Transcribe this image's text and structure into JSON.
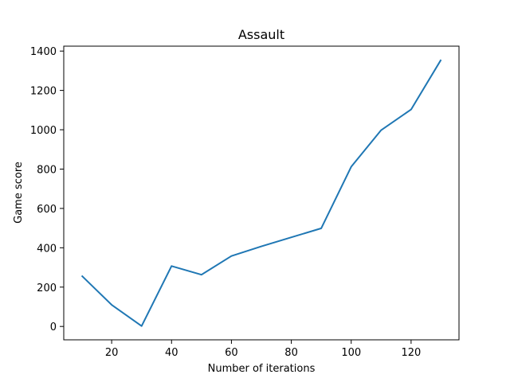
{
  "chart_data": {
    "type": "line",
    "title": "Assault",
    "xlabel": "Number of iterations",
    "ylabel": "Game score",
    "xlim": [
      4,
      136
    ],
    "ylim": [
      -68,
      1425
    ],
    "x_ticks": [
      "20",
      "40",
      "60",
      "80",
      "100",
      "120"
    ],
    "y_ticks": [
      "0",
      "200",
      "400",
      "600",
      "800",
      "1000",
      "1200",
      "1400"
    ],
    "grid": false,
    "series": [
      {
        "color": "#1f77b4",
        "x": [
          10,
          20,
          30,
          40,
          50,
          60,
          70,
          80,
          90,
          100,
          110,
          120,
          130
        ],
        "y": [
          258,
          110,
          2,
          307,
          263,
          358,
          407,
          453,
          499,
          812,
          998,
          1103,
          1356
        ]
      }
    ]
  }
}
